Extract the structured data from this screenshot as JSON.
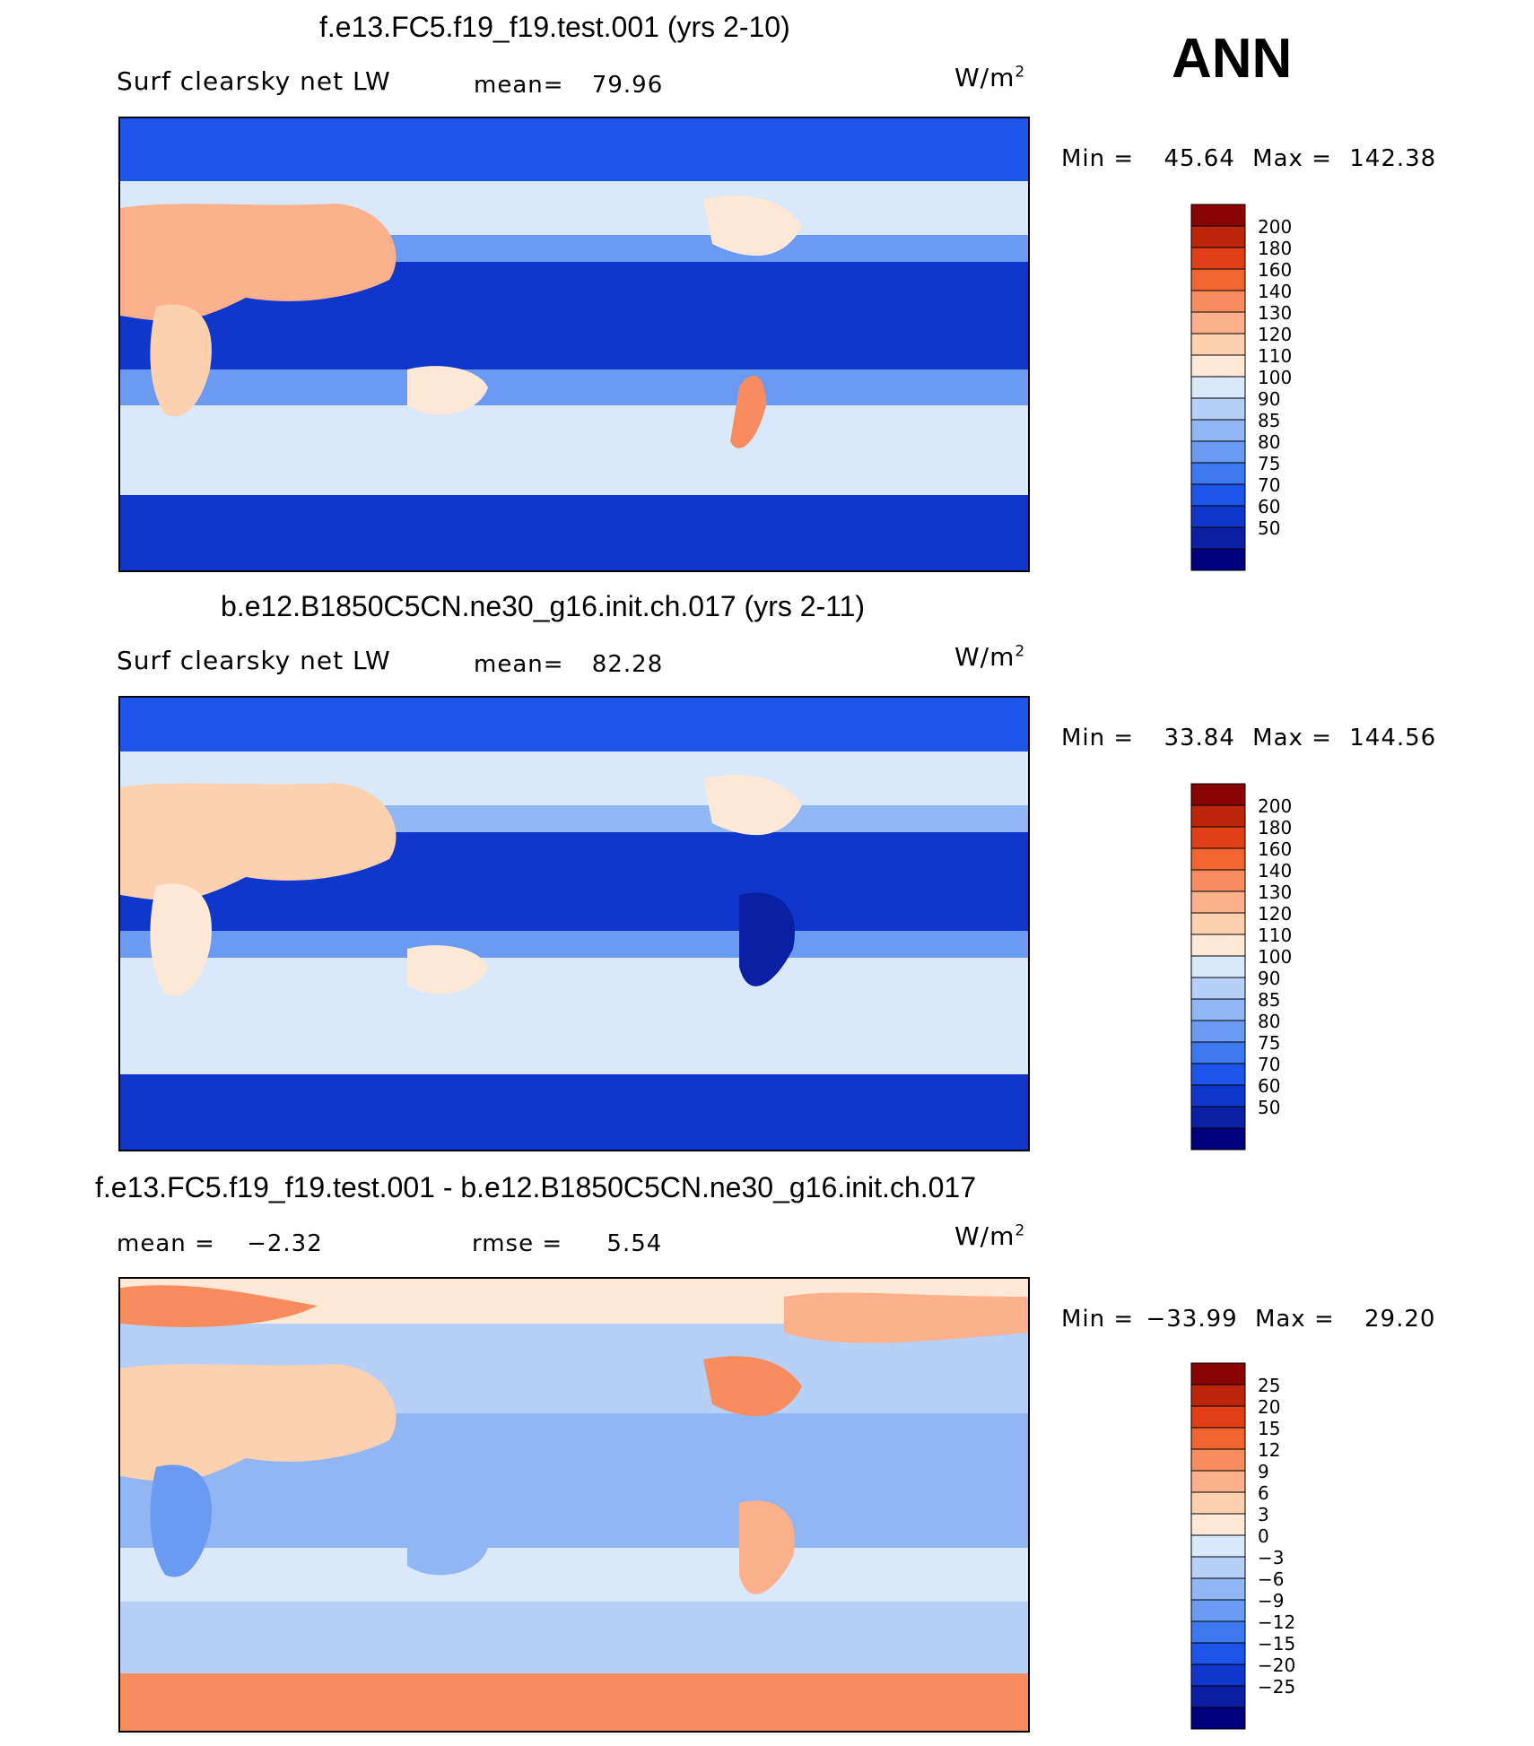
{
  "season": "ANN",
  "colors": {
    "abs_levels": [
      "#00007f",
      "#0b1fa5",
      "#0f37cc",
      "#1d55ea",
      "#3e78f0",
      "#6a9af2",
      "#91b6f4",
      "#b7d0f7",
      "#d9e8fb",
      "#ffe8d6",
      "#fdd0b0",
      "#fcb08c",
      "#f98c5e",
      "#f26531",
      "#e03f17",
      "#bd260a",
      "#8a0303"
    ],
    "diff_levels": [
      "#00007f",
      "#0b1fa5",
      "#0f37cc",
      "#1d55ea",
      "#3e78f0",
      "#6a9af2",
      "#91b6f4",
      "#b7d0f7",
      "#d9e8fb",
      "#ffe8d6",
      "#fdd0b0",
      "#fcb08c",
      "#f98c5e",
      "#f26531",
      "#e03f17",
      "#bd260a",
      "#8a0303"
    ]
  },
  "chart_data": [
    {
      "type": "heatmap",
      "title": "f.e13.FC5.f19_f19.test.001 (yrs 2-10)",
      "variable": "Surf clearsky net LW",
      "stat_label": "mean=",
      "stat_value": "79.96",
      "units": "W/m",
      "units_sup": "2",
      "min_label": "Min =",
      "min_value": "45.64",
      "max_label": "Max =",
      "max_value": "142.38",
      "colorbar_levels": [
        "200",
        "180",
        "160",
        "140",
        "130",
        "120",
        "110",
        "100",
        "90",
        "85",
        "80",
        "75",
        "70",
        "60",
        "50"
      ]
    },
    {
      "type": "heatmap",
      "title": "b.e12.B1850C5CN.ne30_g16.init.ch.017 (yrs 2-11)",
      "variable": "Surf clearsky net LW",
      "stat_label": "mean=",
      "stat_value": "82.28",
      "units": "W/m",
      "units_sup": "2",
      "min_label": "Min =",
      "min_value": "33.84",
      "max_label": "Max =",
      "max_value": "144.56",
      "colorbar_levels": [
        "200",
        "180",
        "160",
        "140",
        "130",
        "120",
        "110",
        "100",
        "90",
        "85",
        "80",
        "75",
        "70",
        "60",
        "50"
      ]
    },
    {
      "type": "heatmap",
      "title": "f.e13.FC5.f19_f19.test.001 - b.e12.B1850C5CN.ne30_g16.init.ch.017",
      "mean_label": "mean =",
      "mean_value": "−2.32",
      "rmse_label": "rmse =",
      "rmse_value": "5.54",
      "units": "W/m",
      "units_sup": "2",
      "min_label": "Min =",
      "min_value": "−33.99",
      "max_label": "Max =",
      "max_value": "29.20",
      "colorbar_levels": [
        "25",
        "20",
        "15",
        "12",
        "9",
        "6",
        "3",
        "0",
        "−3",
        "−6",
        "−9",
        "−12",
        "−15",
        "−20",
        "−25"
      ]
    }
  ]
}
